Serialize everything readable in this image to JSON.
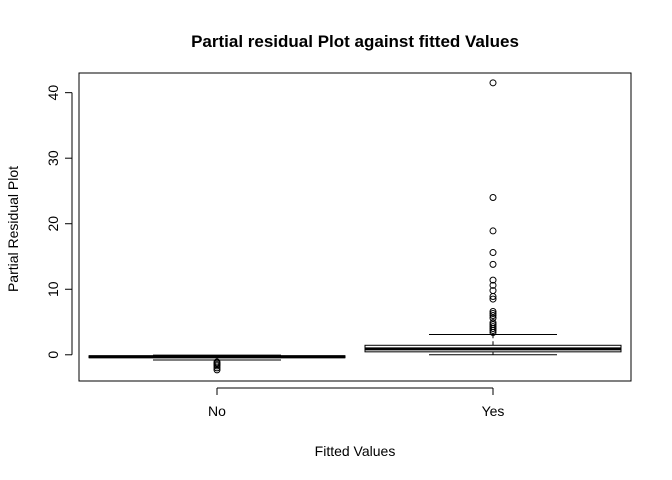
{
  "chart_data": {
    "type": "boxplot",
    "title": "Partial residual Plot against fitted Values",
    "xlabel": "Fitted Values",
    "ylabel": "Partial Residual Plot",
    "categories": [
      "No",
      "Yes"
    ],
    "ylim": [
      -4,
      43
    ],
    "yticks": [
      "0",
      "10",
      "20",
      "30",
      "40"
    ],
    "boxes": [
      {
        "category": "No",
        "whisker_low": -0.8,
        "q1": -0.45,
        "median": -0.3,
        "q3": -0.15,
        "whisker_high": -0.05,
        "outliers": [
          -1.1,
          -1.3,
          -1.5,
          -1.7,
          -2.0,
          -2.3
        ]
      },
      {
        "category": "Yes",
        "whisker_low": 0.0,
        "q1": 0.45,
        "median": 0.9,
        "q3": 1.45,
        "whisker_high": 3.1,
        "outliers": [
          3.4,
          3.7,
          4.0,
          4.3,
          4.6,
          4.9,
          5.6,
          6.0,
          6.3,
          6.6,
          8.5,
          8.9,
          9.8,
          10.6,
          11.4,
          13.8,
          15.6,
          18.9,
          24.0,
          41.5
        ]
      }
    ],
    "grid": false
  }
}
